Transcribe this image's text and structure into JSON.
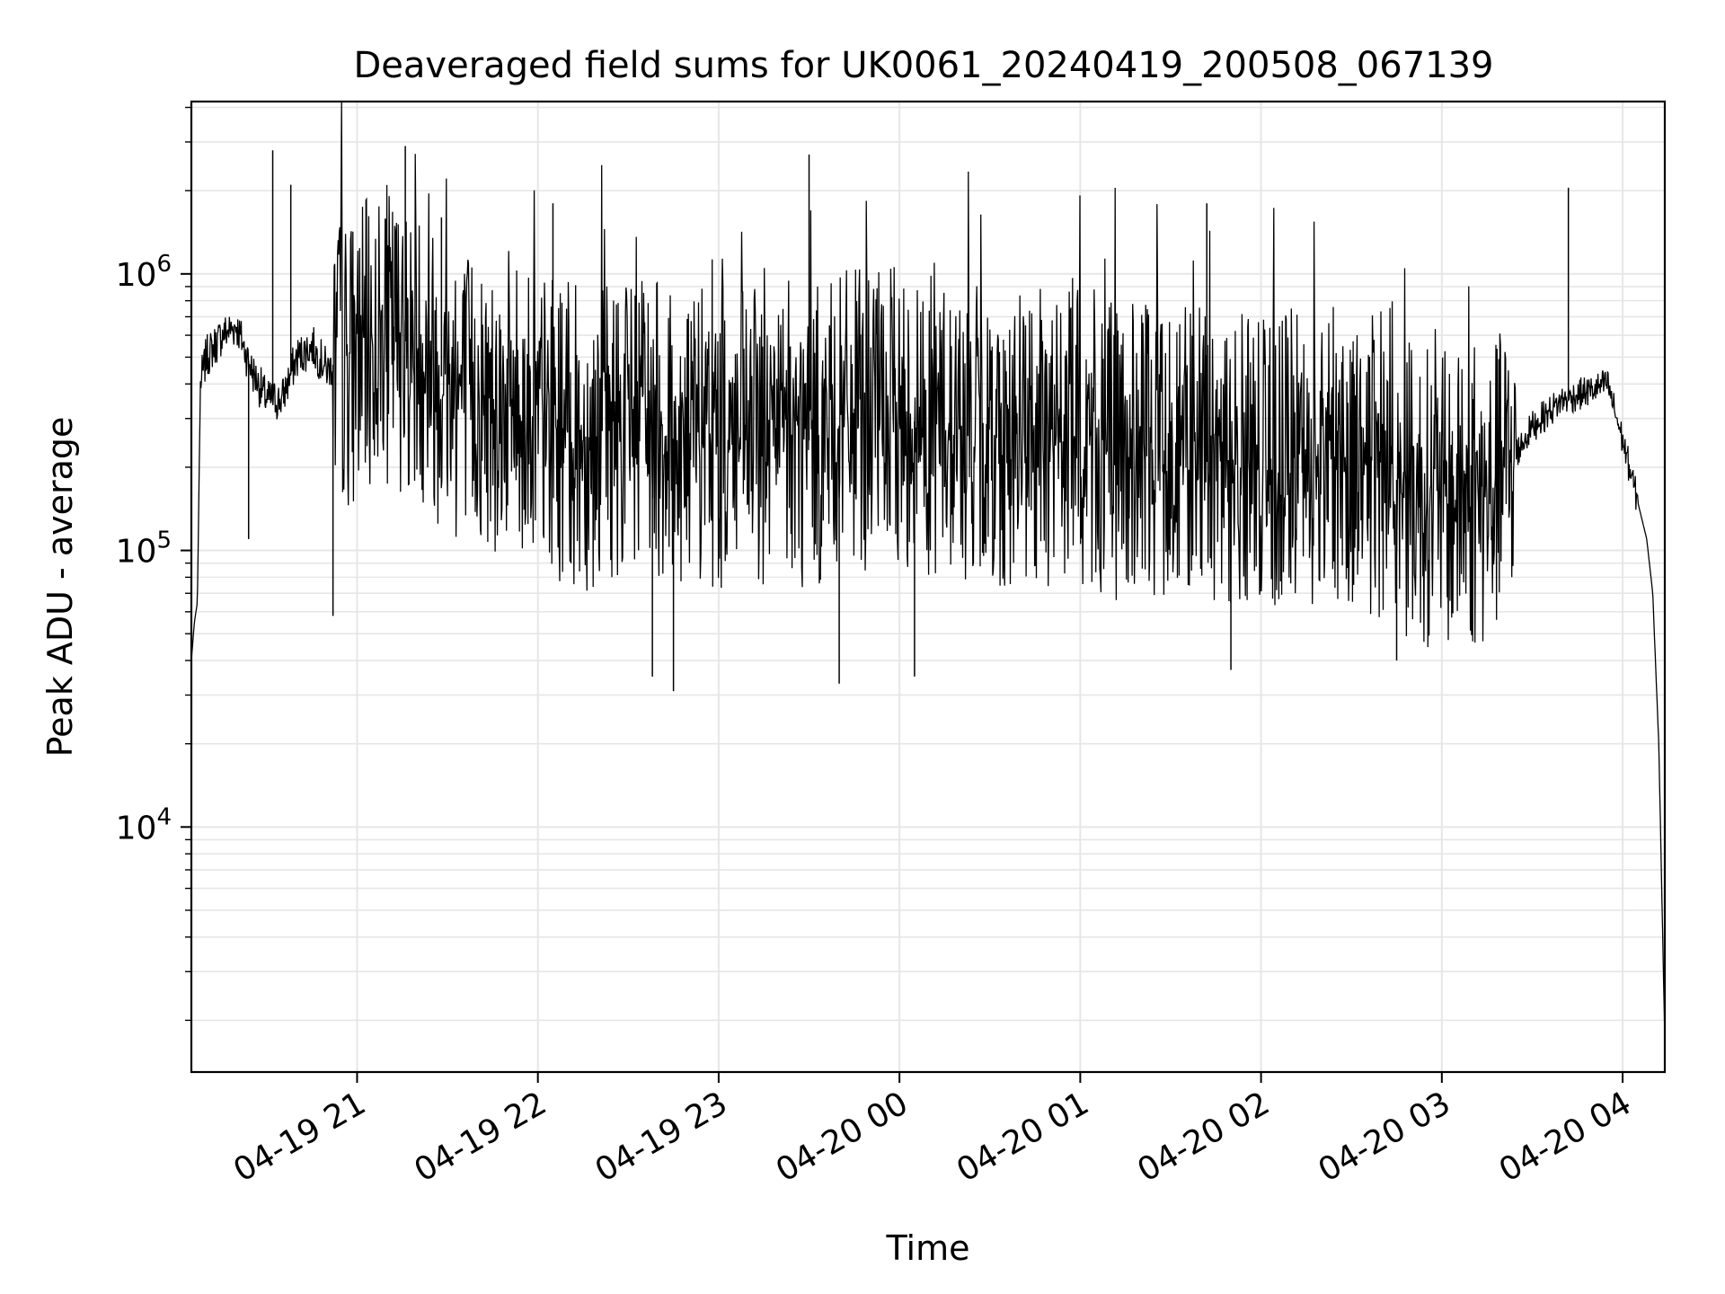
{
  "chart_data": {
    "type": "line",
    "title": "Deaveraged field sums for UK0061_20240419_200508_067139",
    "xlabel": "Time",
    "ylabel": "Peak ADU - average",
    "yscale": "log",
    "ylim": [
      1300,
      4200000
    ],
    "xlim": [
      "2024-04-19 20:05",
      "2024-04-20 04:14"
    ],
    "grid": true,
    "line_color": "#000000",
    "grid_color": "#e6e6e6",
    "x_ticks": [
      {
        "value": "2024-04-19 21:00",
        "label": "04-19 21"
      },
      {
        "value": "2024-04-19 22:00",
        "label": "04-19 22"
      },
      {
        "value": "2024-04-19 23:00",
        "label": "04-19 23"
      },
      {
        "value": "2024-04-20 00:00",
        "label": "04-20 00"
      },
      {
        "value": "2024-04-20 01:00",
        "label": "04-20 01"
      },
      {
        "value": "2024-04-20 02:00",
        "label": "04-20 02"
      },
      {
        "value": "2024-04-20 03:00",
        "label": "04-20 03"
      },
      {
        "value": "2024-04-20 04:00",
        "label": "04-20 04"
      }
    ],
    "y_ticks": [
      {
        "value": 10000,
        "base": "10",
        "exp": "4"
      },
      {
        "value": 100000,
        "base": "10",
        "exp": "5"
      },
      {
        "value": 1000000,
        "base": "10",
        "exp": "6"
      }
    ],
    "series": [
      {
        "x": [
          "2024-04-19 20:05",
          "2024-04-19 20:06",
          "2024-04-19 20:07",
          "2024-04-19 20:08",
          "2024-04-19 20:10",
          "2024-04-19 20:15",
          "2024-04-19 20:20",
          "2024-04-19 20:25",
          "2024-04-19 20:30",
          "2024-04-19 20:35",
          "2024-04-19 20:40",
          "2024-04-19 20:45",
          "2024-04-19 20:50",
          "2024-04-19 20:55",
          "2024-04-19 21:00",
          "2024-04-19 21:10",
          "2024-04-19 21:20",
          "2024-04-19 21:30",
          "2024-04-19 21:40",
          "2024-04-19 21:50",
          "2024-04-19 22:00",
          "2024-04-19 22:15",
          "2024-04-19 22:30",
          "2024-04-19 22:45",
          "2024-04-19 23:00",
          "2024-04-19 23:15",
          "2024-04-19 23:30",
          "2024-04-19 23:45",
          "2024-04-20 00:00",
          "2024-04-20 00:15",
          "2024-04-20 00:30",
          "2024-04-20 00:45",
          "2024-04-20 01:00",
          "2024-04-20 01:15",
          "2024-04-20 01:30",
          "2024-04-20 01:45",
          "2024-04-20 02:00",
          "2024-04-20 02:15",
          "2024-04-20 02:30",
          "2024-04-20 02:45",
          "2024-04-20 03:00",
          "2024-04-20 03:15",
          "2024-04-20 03:30",
          "2024-04-20 03:40",
          "2024-04-20 03:50",
          "2024-04-20 03:55",
          "2024-04-20 04:00",
          "2024-04-20 04:05",
          "2024-04-20 04:08",
          "2024-04-20 04:10",
          "2024-04-20 04:12",
          "2024-04-20 04:14"
        ],
        "y": [
          40000,
          55000,
          65000,
          400000,
          500000,
          600000,
          650000,
          450000,
          350000,
          350000,
          500000,
          550000,
          450000,
          500000,
          500000,
          600000,
          550000,
          400000,
          350000,
          350000,
          300000,
          250000,
          300000,
          250000,
          250000,
          250000,
          250000,
          300000,
          300000,
          280000,
          250000,
          250000,
          250000,
          220000,
          250000,
          200000,
          200000,
          220000,
          220000,
          180000,
          150000,
          150000,
          280000,
          350000,
          380000,
          400000,
          250000,
          150000,
          110000,
          70000,
          20000,
          1700
        ]
      }
    ],
    "spikes_up": [
      {
        "x": "2024-04-19 20:38",
        "y": 2100000
      },
      {
        "x": "2024-04-19 20:32",
        "y": 2800000
      },
      {
        "x": "2024-04-19 21:16",
        "y": 2900000
      },
      {
        "x": "2024-04-19 21:28",
        "y": 1600000
      },
      {
        "x": "2024-04-19 22:05",
        "y": 1800000
      },
      {
        "x": "2024-04-19 23:30",
        "y": 2700000
      },
      {
        "x": "2024-04-20 01:42",
        "y": 1800000
      },
      {
        "x": "2024-04-20 03:42",
        "y": 2050000
      }
    ],
    "spikes_down": [
      {
        "x": "2024-04-19 20:24",
        "y": 110000
      },
      {
        "x": "2024-04-19 20:52",
        "y": 58000
      },
      {
        "x": "2024-04-19 22:38",
        "y": 35000
      },
      {
        "x": "2024-04-19 22:45",
        "y": 31000
      },
      {
        "x": "2024-04-19 23:40",
        "y": 33000
      },
      {
        "x": "2024-04-20 00:05",
        "y": 35000
      },
      {
        "x": "2024-04-20 01:50",
        "y": 37000
      },
      {
        "x": "2024-04-20 02:45",
        "y": 40000
      }
    ]
  }
}
